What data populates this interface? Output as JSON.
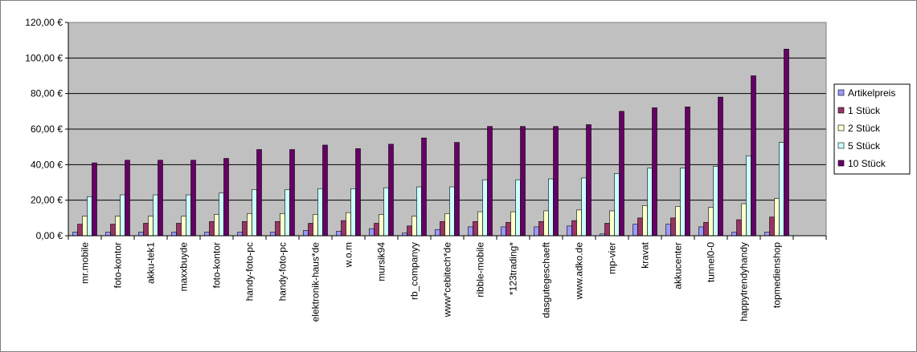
{
  "chart_data": {
    "type": "bar",
    "categories": [
      "mr.mobile",
      "foto-kontor",
      "akku-tek1",
      "maxxbuyde",
      "foto-kontor",
      "handy-foto-pc",
      "handy-foto-pc",
      "elektronik-haus*de",
      "w.o.m",
      "mursik94",
      "rb_companyy",
      "www*cebitech*de",
      "ribble-mobile",
      "*123trading*",
      "dasgutegeschaeft",
      "www.adko.de",
      "mp-vier",
      "kravat",
      "akkucenter",
      "tunnel0-0",
      "happytrendyhandy",
      "topmedienshop",
      null
    ],
    "series": [
      {
        "name": "Artikelpreis",
        "color": "#9999ff",
        "values": [
          2,
          2,
          2,
          2,
          2,
          2,
          2,
          3,
          2.5,
          4,
          1.5,
          3.5,
          5,
          5,
          5,
          5.5,
          1,
          6.5,
          6.5,
          5,
          2,
          2,
          null
        ]
      },
      {
        "name": "1 Stück",
        "color": "#993366",
        "values": [
          6.5,
          6.5,
          7,
          7,
          8,
          8,
          8,
          7,
          8.5,
          7,
          5.5,
          8,
          8,
          7.5,
          8,
          8.5,
          7,
          10,
          10,
          7.5,
          9,
          10.5,
          null
        ]
      },
      {
        "name": "2 Stück",
        "color": "#ffffcc",
        "values": [
          11,
          11,
          11,
          11,
          12,
          12.5,
          12.5,
          12,
          13,
          12,
          11,
          12.5,
          13.5,
          13.5,
          14,
          14.5,
          14,
          17,
          16.5,
          16,
          18,
          21,
          null
        ]
      },
      {
        "name": "5 Stück",
        "color": "#ccffff",
        "values": [
          22,
          23,
          23,
          23,
          24,
          26,
          26,
          26.5,
          26.5,
          27,
          27.5,
          27.5,
          31.5,
          31.5,
          32,
          32.5,
          35,
          38,
          38,
          39,
          45,
          52.5,
          null
        ]
      },
      {
        "name": "10 Stück",
        "color": "#660066",
        "values": [
          41,
          42.5,
          42.5,
          42.5,
          43.5,
          48.5,
          48.5,
          51,
          49,
          51.5,
          55,
          52.5,
          61.5,
          61.5,
          61.5,
          62.5,
          70,
          72,
          72.5,
          78,
          90,
          105,
          null
        ]
      }
    ],
    "ylim": [
      0,
      120
    ],
    "yticks": [
      {
        "value": 0,
        "label": "0,00 €"
      },
      {
        "value": 20,
        "label": "20,00 €"
      },
      {
        "value": 40,
        "label": "40,00 €"
      },
      {
        "value": 60,
        "label": "60,00 €"
      },
      {
        "value": 80,
        "label": "80,00 €"
      },
      {
        "value": 100,
        "label": "100,00 €"
      },
      {
        "value": 120,
        "label": "120,00 €"
      }
    ],
    "grid": true,
    "legend": "right",
    "plot_background": "#c0c0c0"
  }
}
